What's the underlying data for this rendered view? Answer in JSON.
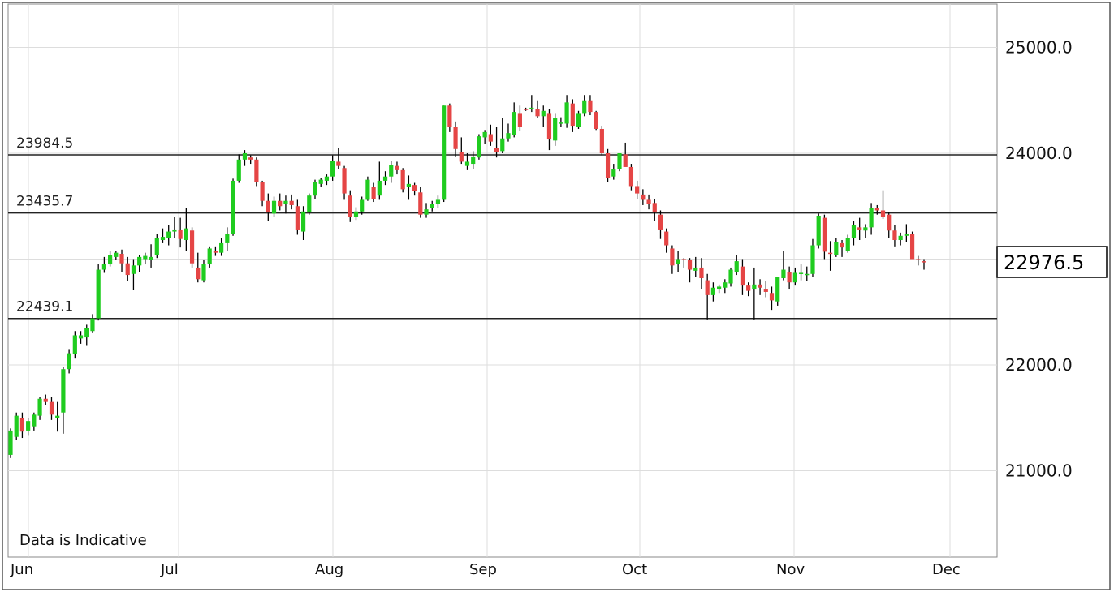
{
  "chart_data": {
    "type": "candlestick",
    "x_axis_labels": [
      "Jun",
      "Jul",
      "Aug",
      "Sep",
      "Oct",
      "Nov",
      "Dec"
    ],
    "y_tick_labels": [
      "25000.0",
      "24000.0",
      "22000.0",
      "21000.0"
    ],
    "y_ticks": [
      25000,
      24000,
      22000,
      21000
    ],
    "grid": true,
    "last_price": 22976.5,
    "last_price_label": "22976.5",
    "reference_levels": [
      {
        "value": 23984.5,
        "label": "23984.5"
      },
      {
        "value": 23435.7,
        "label": "23435.7"
      },
      {
        "value": 22439.1,
        "label": "22439.1"
      }
    ],
    "note": "Data is Indicative",
    "colors": {
      "up": "#1fcc1f",
      "down": "#e54545",
      "wick": "#000000",
      "grid": "#dddddd",
      "level_line": "#222222"
    },
    "candles_ohlc": [
      [
        21150,
        21400,
        21120,
        21380
      ],
      [
        21320,
        21550,
        21290,
        21520
      ],
      [
        21500,
        21550,
        21310,
        21370
      ],
      [
        21380,
        21500,
        21330,
        21470
      ],
      [
        21420,
        21550,
        21380,
        21530
      ],
      [
        21520,
        21700,
        21480,
        21680
      ],
      [
        21680,
        21720,
        21620,
        21650
      ],
      [
        21650,
        21700,
        21480,
        21530
      ],
      [
        21500,
        21650,
        21370,
        21520
      ],
      [
        21550,
        21980,
        21350,
        21960
      ],
      [
        21960,
        22150,
        21920,
        22110
      ],
      [
        22100,
        22320,
        22060,
        22280
      ],
      [
        22250,
        22320,
        22200,
        22280
      ],
      [
        22260,
        22380,
        22180,
        22350
      ],
      [
        22320,
        22480,
        22300,
        22440
      ],
      [
        22440,
        22950,
        22420,
        22900
      ],
      [
        22900,
        23020,
        22870,
        22950
      ],
      [
        22950,
        23080,
        22930,
        23040
      ],
      [
        23020,
        23080,
        22990,
        23060
      ],
      [
        23050,
        23090,
        22880,
        22960
      ],
      [
        22960,
        23020,
        22790,
        22850
      ],
      [
        22860,
        23000,
        22710,
        22940
      ],
      [
        22940,
        23040,
        22880,
        23020
      ],
      [
        23000,
        23060,
        22950,
        23030
      ],
      [
        22990,
        23140,
        22920,
        23020
      ],
      [
        23040,
        23240,
        23010,
        23200
      ],
      [
        23180,
        23290,
        23150,
        23210
      ],
      [
        23200,
        23320,
        23130,
        23260
      ],
      [
        23260,
        23400,
        23200,
        23280
      ],
      [
        23280,
        23390,
        23110,
        23190
      ],
      [
        23180,
        23480,
        23080,
        23290
      ],
      [
        23270,
        23300,
        22920,
        22960
      ],
      [
        22920,
        23060,
        22780,
        22810
      ],
      [
        22800,
        22990,
        22780,
        22950
      ],
      [
        22950,
        23120,
        22920,
        23100
      ],
      [
        23080,
        23120,
        23030,
        23060
      ],
      [
        23060,
        23200,
        23030,
        23150
      ],
      [
        23150,
        23300,
        23080,
        23240
      ],
      [
        23240,
        23760,
        23220,
        23740
      ],
      [
        23740,
        23990,
        23720,
        23940
      ],
      [
        23940,
        24030,
        23880,
        24000
      ],
      [
        23960,
        23980,
        23900,
        23940
      ],
      [
        23940,
        23960,
        23690,
        23730
      ],
      [
        23730,
        23740,
        23500,
        23550
      ],
      [
        23550,
        23620,
        23360,
        23440
      ],
      [
        23430,
        23590,
        23400,
        23550
      ],
      [
        23550,
        23620,
        23460,
        23500
      ],
      [
        23520,
        23600,
        23430,
        23550
      ],
      [
        23550,
        23610,
        23470,
        23510
      ],
      [
        23500,
        23560,
        23230,
        23280
      ],
      [
        23260,
        23500,
        23180,
        23450
      ],
      [
        23440,
        23620,
        23420,
        23600
      ],
      [
        23600,
        23750,
        23570,
        23730
      ],
      [
        23710,
        23770,
        23680,
        23750
      ],
      [
        23740,
        23800,
        23700,
        23780
      ],
      [
        23780,
        23980,
        23740,
        23930
      ],
      [
        23920,
        24050,
        23850,
        23880
      ],
      [
        23860,
        23880,
        23560,
        23620
      ],
      [
        23600,
        23650,
        23350,
        23400
      ],
      [
        23400,
        23490,
        23370,
        23450
      ],
      [
        23450,
        23590,
        23420,
        23560
      ],
      [
        23560,
        23780,
        23550,
        23750
      ],
      [
        23680,
        23720,
        23540,
        23570
      ],
      [
        23600,
        23920,
        23560,
        23740
      ],
      [
        23740,
        23830,
        23700,
        23780
      ],
      [
        23780,
        23930,
        23720,
        23890
      ],
      [
        23880,
        23920,
        23800,
        23840
      ],
      [
        23840,
        23860,
        23630,
        23660
      ],
      [
        23680,
        23790,
        23560,
        23710
      ],
      [
        23700,
        23720,
        23600,
        23640
      ],
      [
        23630,
        23680,
        23390,
        23420
      ],
      [
        23420,
        23530,
        23390,
        23470
      ],
      [
        23480,
        23550,
        23450,
        23520
      ],
      [
        23520,
        23600,
        23480,
        23560
      ],
      [
        23560,
        24450,
        23540,
        24450
      ],
      [
        24450,
        24470,
        24200,
        24250
      ],
      [
        24250,
        24300,
        23970,
        24040
      ],
      [
        24010,
        24150,
        23900,
        23920
      ],
      [
        23880,
        24000,
        23840,
        23920
      ],
      [
        23900,
        24020,
        23850,
        23970
      ],
      [
        23960,
        24180,
        23940,
        24160
      ],
      [
        24150,
        24220,
        24090,
        24200
      ],
      [
        24180,
        24270,
        24070,
        24110
      ],
      [
        24050,
        24250,
        23960,
        24010
      ],
      [
        24020,
        24330,
        24000,
        24140
      ],
      [
        24140,
        24280,
        24110,
        24190
      ],
      [
        24170,
        24480,
        24150,
        24390
      ],
      [
        24380,
        24450,
        24210,
        24250
      ],
      [
        24420,
        24430,
        24400,
        24410
      ],
      [
        24420,
        24550,
        24390,
        24430
      ],
      [
        24420,
        24500,
        24330,
        24350
      ],
      [
        24350,
        24450,
        24250,
        24400
      ],
      [
        24380,
        24420,
        24030,
        24130
      ],
      [
        24120,
        24380,
        24070,
        24330
      ],
      [
        24280,
        24340,
        24250,
        24290
      ],
      [
        24280,
        24550,
        24240,
        24480
      ],
      [
        24470,
        24510,
        24200,
        24260
      ],
      [
        24250,
        24400,
        24230,
        24380
      ],
      [
        24380,
        24550,
        24350,
        24500
      ],
      [
        24500,
        24550,
        24360,
        24390
      ],
      [
        24390,
        24400,
        24220,
        24230
      ],
      [
        24230,
        24260,
        23980,
        24000
      ],
      [
        24000,
        24040,
        23730,
        23770
      ],
      [
        23780,
        23900,
        23750,
        23850
      ],
      [
        23850,
        24000,
        23830,
        24000
      ],
      [
        23990,
        24100,
        23910,
        23870
      ],
      [
        23870,
        23900,
        23650,
        23690
      ],
      [
        23690,
        23740,
        23570,
        23620
      ],
      [
        23610,
        23660,
        23510,
        23560
      ],
      [
        23560,
        23610,
        23470,
        23520
      ],
      [
        23530,
        23570,
        23360,
        23440
      ],
      [
        23420,
        23460,
        23190,
        23280
      ],
      [
        23260,
        23290,
        23060,
        23130
      ],
      [
        23100,
        23130,
        22860,
        22940
      ],
      [
        22950,
        23080,
        22880,
        23000
      ],
      [
        23000,
        23010,
        22920,
        22990
      ],
      [
        22990,
        23010,
        22780,
        22900
      ],
      [
        22890,
        23020,
        22830,
        22920
      ],
      [
        22920,
        23010,
        22720,
        22820
      ],
      [
        22800,
        22860,
        22430,
        22660
      ],
      [
        22660,
        22780,
        22600,
        22730
      ],
      [
        22720,
        22760,
        22680,
        22740
      ],
      [
        22730,
        22810,
        22680,
        22780
      ],
      [
        22770,
        22920,
        22740,
        22900
      ],
      [
        22880,
        23040,
        22850,
        22980
      ],
      [
        22930,
        23000,
        22660,
        22750
      ],
      [
        22750,
        22780,
        22650,
        22700
      ],
      [
        22720,
        22920,
        22430,
        22760
      ],
      [
        22760,
        22810,
        22660,
        22730
      ],
      [
        22720,
        22790,
        22640,
        22690
      ],
      [
        22680,
        22740,
        22520,
        22610
      ],
      [
        22600,
        22820,
        22560,
        22830
      ],
      [
        22820,
        23080,
        22800,
        22900
      ],
      [
        22880,
        22930,
        22720,
        22780
      ],
      [
        22780,
        22920,
        22750,
        22870
      ],
      [
        22860,
        22950,
        22800,
        22870
      ],
      [
        22860,
        22930,
        22790,
        22860
      ],
      [
        22860,
        23190,
        22830,
        23130
      ],
      [
        23130,
        23430,
        23100,
        23410
      ],
      [
        23390,
        23420,
        23000,
        23070
      ],
      [
        23060,
        23170,
        22890,
        23050
      ],
      [
        23040,
        23200,
        23020,
        23160
      ],
      [
        23150,
        23180,
        23020,
        23110
      ],
      [
        23080,
        23230,
        23060,
        23200
      ],
      [
        23200,
        23360,
        23130,
        23320
      ],
      [
        23300,
        23390,
        23180,
        23280
      ],
      [
        23270,
        23330,
        23200,
        23300
      ],
      [
        23300,
        23530,
        23230,
        23480
      ],
      [
        23480,
        23510,
        23420,
        23460
      ],
      [
        23460,
        23650,
        23380,
        23400
      ],
      [
        23420,
        23440,
        23200,
        23270
      ],
      [
        23270,
        23320,
        23120,
        23180
      ],
      [
        23180,
        23250,
        23130,
        23220
      ],
      [
        23220,
        23330,
        23160,
        23240
      ],
      [
        23240,
        23260,
        23000,
        23000
      ],
      [
        23000,
        23030,
        22940,
        22990
      ],
      [
        22980,
        23000,
        22900,
        22976
      ]
    ]
  }
}
